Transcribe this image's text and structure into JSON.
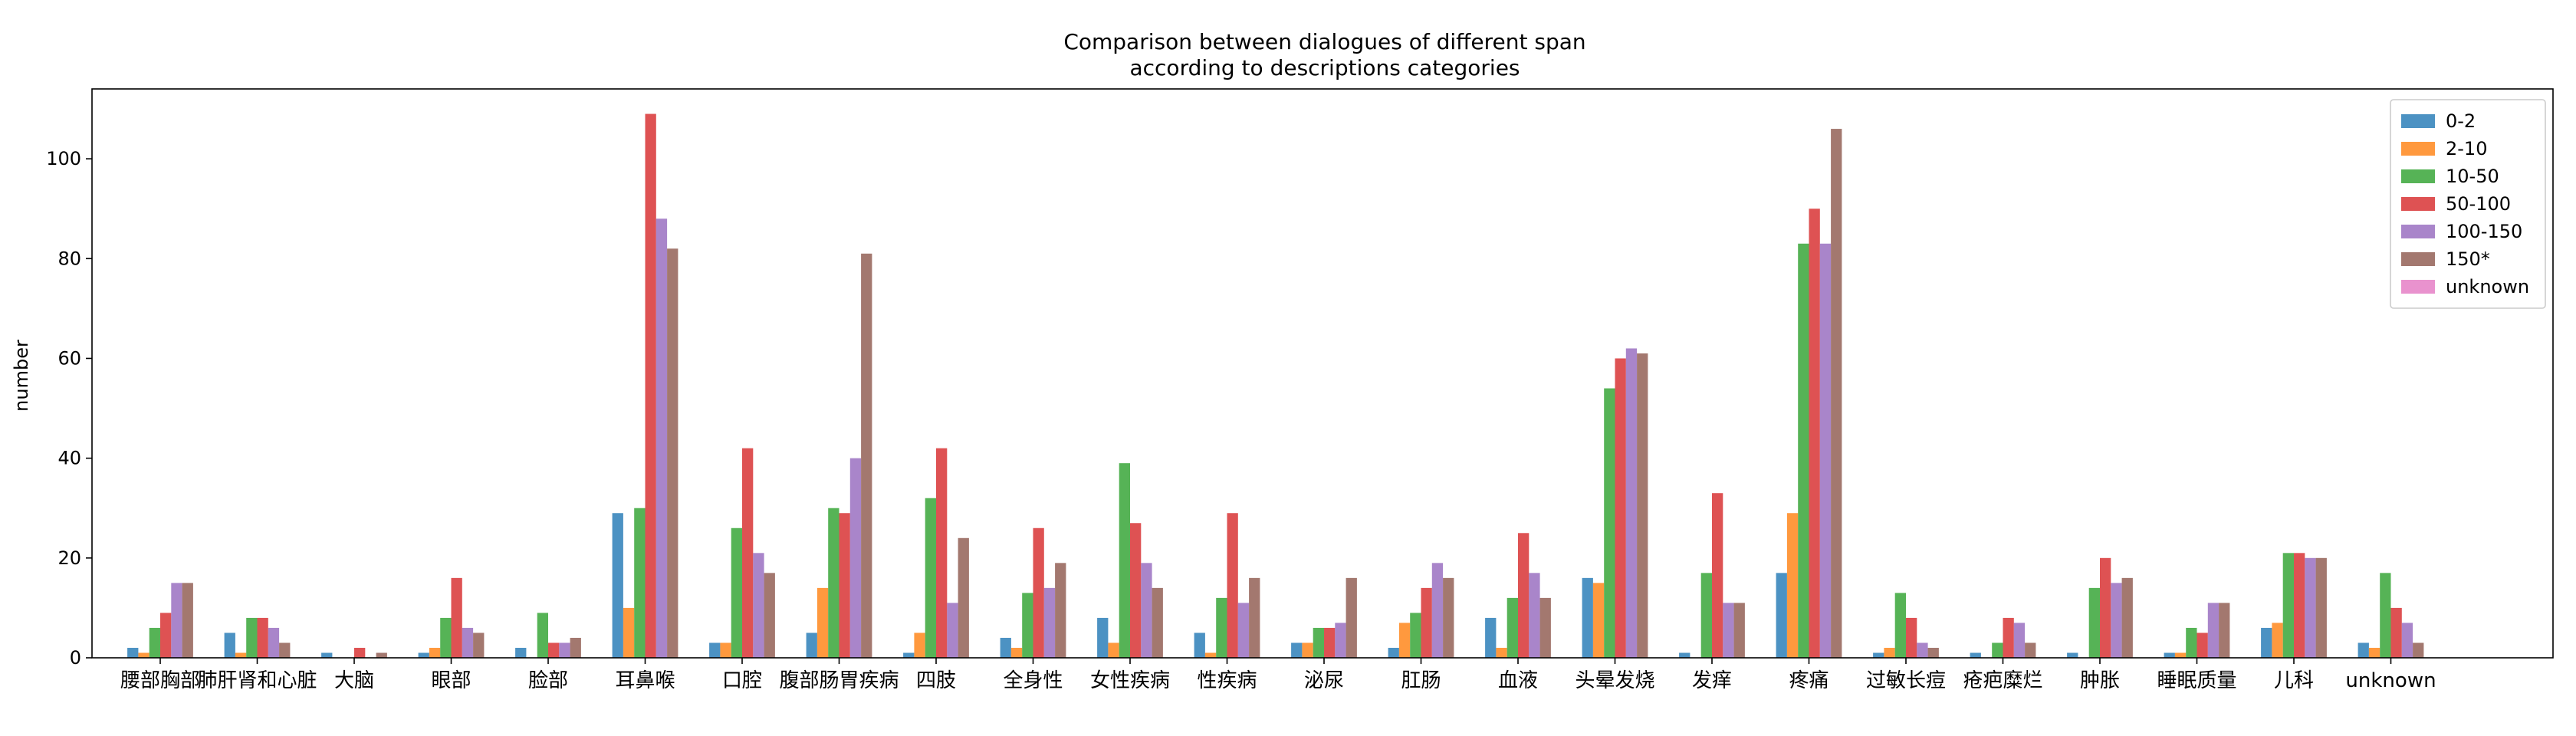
{
  "chart_data": {
    "type": "bar",
    "title": [
      "Comparison between dialogues of different span",
      "according to descriptions categories"
    ],
    "xlabel": "",
    "ylabel": "number",
    "ylim": [
      0,
      114
    ],
    "yticks": [
      0,
      20,
      40,
      60,
      80,
      100
    ],
    "grid": false,
    "legend_position": "top-right",
    "categories": [
      "腰部胸部",
      "肺肝肾和心脏",
      "大脑",
      "眼部",
      "脸部",
      "耳鼻喉",
      "口腔",
      "腹部肠胃疾病",
      "四肢",
      "全身性",
      "女性疾病",
      "性疾病",
      "泌尿",
      "肛肠",
      "血液",
      "头晕发烧",
      "发痒",
      "疼痛",
      "过敏长痘",
      "疮疤糜烂",
      "肿胀",
      "睡眠质量",
      "儿科",
      "unknown"
    ],
    "series": [
      {
        "name": "0-2",
        "color": "#1f77b4",
        "values": [
          2,
          5,
          1,
          1,
          2,
          29,
          3,
          5,
          1,
          4,
          8,
          5,
          3,
          2,
          8,
          16,
          1,
          17,
          1,
          1,
          1,
          1,
          6,
          3
        ]
      },
      {
        "name": "2-10",
        "color": "#ff7f0e",
        "values": [
          1,
          1,
          0,
          2,
          0,
          10,
          3,
          14,
          5,
          2,
          3,
          1,
          3,
          7,
          2,
          15,
          0,
          29,
          2,
          0,
          0,
          1,
          7,
          2
        ]
      },
      {
        "name": "10-50",
        "color": "#2ca02c",
        "values": [
          6,
          8,
          0,
          8,
          9,
          30,
          26,
          30,
          32,
          13,
          39,
          12,
          6,
          9,
          12,
          54,
          17,
          83,
          13,
          3,
          14,
          6,
          21,
          17
        ]
      },
      {
        "name": "50-100",
        "color": "#d62728",
        "values": [
          9,
          8,
          2,
          16,
          3,
          109,
          42,
          29,
          42,
          26,
          27,
          29,
          6,
          14,
          25,
          60,
          33,
          90,
          8,
          8,
          20,
          5,
          21,
          10
        ]
      },
      {
        "name": "100-150",
        "color": "#9467bd",
        "values": [
          15,
          6,
          0,
          6,
          3,
          88,
          21,
          40,
          11,
          14,
          19,
          11,
          7,
          19,
          17,
          62,
          11,
          83,
          3,
          7,
          15,
          11,
          20,
          7
        ]
      },
      {
        "name": "150*",
        "color": "#8c564b",
        "values": [
          15,
          3,
          1,
          5,
          4,
          82,
          17,
          81,
          24,
          19,
          14,
          16,
          16,
          16,
          12,
          61,
          11,
          106,
          2,
          3,
          16,
          11,
          20,
          3
        ]
      },
      {
        "name": "unknown",
        "color": "#e377c2",
        "values": [
          0,
          0,
          0,
          0,
          0,
          0,
          0,
          0,
          0,
          0,
          0,
          0,
          0,
          0,
          0,
          0,
          0,
          0,
          0,
          0,
          0,
          0,
          0,
          0
        ]
      }
    ]
  }
}
